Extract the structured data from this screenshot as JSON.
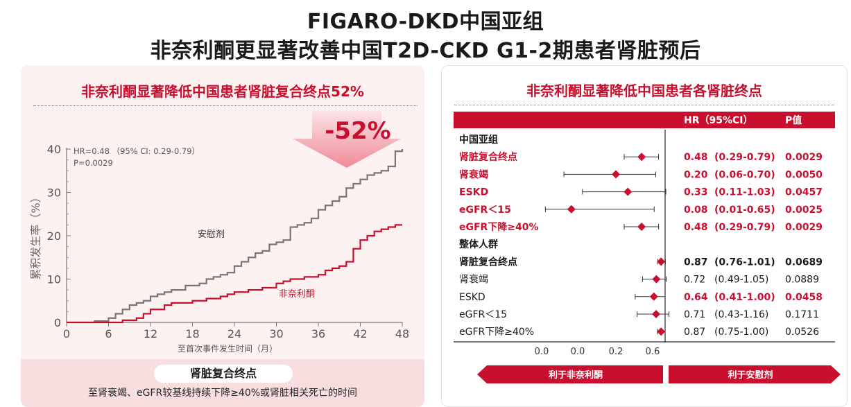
{
  "header": {
    "title_line1": "FIGARO-DKD中国亚组",
    "title_line2": "非奈利酮更显著改善中国T2D-CKD G1-2期患者肾脏预后"
  },
  "left_panel": {
    "title": "非奈利酮显著降低中国患者肾脏复合终点52%",
    "reduction_label": "-52%",
    "stats_line1": "HR=0.48  （95% CI: 0.29-0.79）",
    "stats_line2": "P=0.0029",
    "footer_badge": "肾脏复合终点",
    "footer_text": "至肾衰竭、eGFR较基线持续下降≥40%或肾脏相关死亡的时间"
  },
  "chart_data": [
    {
      "type": "line",
      "title": "非奈利酮显著降低中国患者肾脏复合终点52%",
      "xlabel": "至首次事件发生时间（月）",
      "ylabel": "累积发生率（%）",
      "xlim": [
        0,
        48
      ],
      "ylim": [
        0,
        40
      ],
      "xticks": [
        0,
        6,
        12,
        18,
        24,
        30,
        36,
        42,
        48
      ],
      "yticks": [
        0,
        10,
        20,
        30,
        40
      ],
      "series": [
        {
          "name": "安慰剂",
          "color": "#777777",
          "step": true,
          "x": [
            0,
            4,
            6,
            7,
            8,
            9,
            10,
            11,
            12,
            13,
            14,
            15,
            17,
            19,
            20,
            21,
            22,
            23,
            24,
            25,
            26,
            27,
            28,
            29,
            30,
            31,
            32,
            33,
            34,
            35,
            36,
            37,
            38,
            39,
            40,
            41,
            42,
            43,
            44,
            45,
            46,
            47,
            48
          ],
          "y": [
            0,
            0.3,
            1,
            2,
            3,
            4,
            4.5,
            5,
            6,
            6.5,
            7,
            7.5,
            8.5,
            9,
            10,
            10.5,
            11,
            11.5,
            13,
            14,
            15,
            16,
            16.5,
            18,
            18.5,
            19,
            22,
            22.5,
            23,
            24,
            26,
            27,
            28,
            29,
            31,
            32,
            33,
            34,
            34.5,
            35,
            36,
            39.5,
            40
          ]
        },
        {
          "name": "非奈利酮",
          "color": "#c8102e",
          "step": true,
          "x": [
            0,
            8,
            10,
            11,
            12,
            14,
            15,
            18,
            20,
            22,
            23,
            24,
            26,
            28,
            30,
            31,
            32,
            34,
            36,
            37,
            38,
            39,
            40,
            41,
            42,
            43,
            44,
            45,
            46,
            47,
            48
          ],
          "y": [
            0,
            0.5,
            1,
            2,
            3,
            4,
            4.5,
            5,
            5.5,
            6,
            6.5,
            7,
            7.5,
            8,
            9,
            9.5,
            10,
            10.5,
            11,
            12,
            12.5,
            13,
            14,
            17,
            19,
            20,
            21,
            21.5,
            22,
            22.5,
            22.5
          ]
        }
      ]
    },
    {
      "type": "table",
      "title": "非奈利酮显著降低中国患者各肾脏终点",
      "columns": [
        "HR（95%CI）",
        "P值"
      ],
      "x_axis_ticks": [
        "0.0",
        "0.0",
        "0.2",
        "0.6"
      ],
      "favors_left": "利于非奈利酮",
      "favors_right": "利于安慰剂",
      "groups": [
        {
          "header": "中国亚组",
          "rows": [
            {
              "label": "肾脏复合终点",
              "hr": 0.48,
              "lo": 0.29,
              "hi": 0.79,
              "hr_text": "0.48",
              "ci_text": "(0.29-0.79)",
              "p_text": "0.0029",
              "style": "red-bold"
            },
            {
              "label": "肾衰竭",
              "hr": 0.2,
              "lo": 0.06,
              "hi": 0.7,
              "hr_text": "0.20",
              "ci_text": "(0.06-0.70)",
              "p_text": "0.0050",
              "style": "red-bold"
            },
            {
              "label": "ESKD",
              "hr": 0.33,
              "lo": 0.11,
              "hi": 1.03,
              "hr_text": "0.33",
              "ci_text": "(0.11-1.03)",
              "p_text": "0.0457",
              "style": "red-bold"
            },
            {
              "label": "eGFR＜15",
              "hr": 0.08,
              "lo": 0.01,
              "hi": 0.65,
              "hr_text": "0.08",
              "ci_text": "(0.01-0.65)",
              "p_text": "0.0025",
              "style": "red-bold"
            },
            {
              "label": "eGFR下降≥40%",
              "hr": 0.48,
              "lo": 0.29,
              "hi": 0.79,
              "hr_text": "0.48",
              "ci_text": "(0.29-0.79)",
              "p_text": "0.0029",
              "style": "red-bold"
            }
          ]
        },
        {
          "header": "整体人群",
          "rows": [
            {
              "label": "肾脏复合终点",
              "hr": 0.87,
              "lo": 0.76,
              "hi": 1.01,
              "hr_text": "0.87",
              "ci_text": "(0.76-1.01)",
              "p_text": "0.0689",
              "style": "dark-bold"
            },
            {
              "label": "肾衰竭",
              "hr": 0.72,
              "lo": 0.49,
              "hi": 1.05,
              "hr_text": "0.72",
              "ci_text": "(0.49-1.05)",
              "p_text": "0.0889",
              "style": "normal"
            },
            {
              "label": "ESKD",
              "hr": 0.64,
              "lo": 0.41,
              "hi": 1.0,
              "hr_text": "0.64",
              "ci_text": "(0.41-1.00)",
              "p_text": "0.0458",
              "style": "mixed"
            },
            {
              "label": "eGFR＜15",
              "hr": 0.71,
              "lo": 0.43,
              "hi": 1.16,
              "hr_text": "0.71",
              "ci_text": "(0.43-1.16)",
              "p_text": "0.1711",
              "style": "normal"
            },
            {
              "label": "eGFR下降≥40%",
              "hr": 0.87,
              "lo": 0.75,
              "hi": 1.0,
              "hr_text": "0.87",
              "ci_text": "(0.75-1.00)",
              "p_text": "0.0526",
              "style": "normal"
            }
          ]
        }
      ]
    }
  ],
  "colors": {
    "accent_red": "#c8102e",
    "placebo_gray": "#777777",
    "text_dark": "#1a1a1a",
    "panel_bg": "#fdf2f2"
  }
}
